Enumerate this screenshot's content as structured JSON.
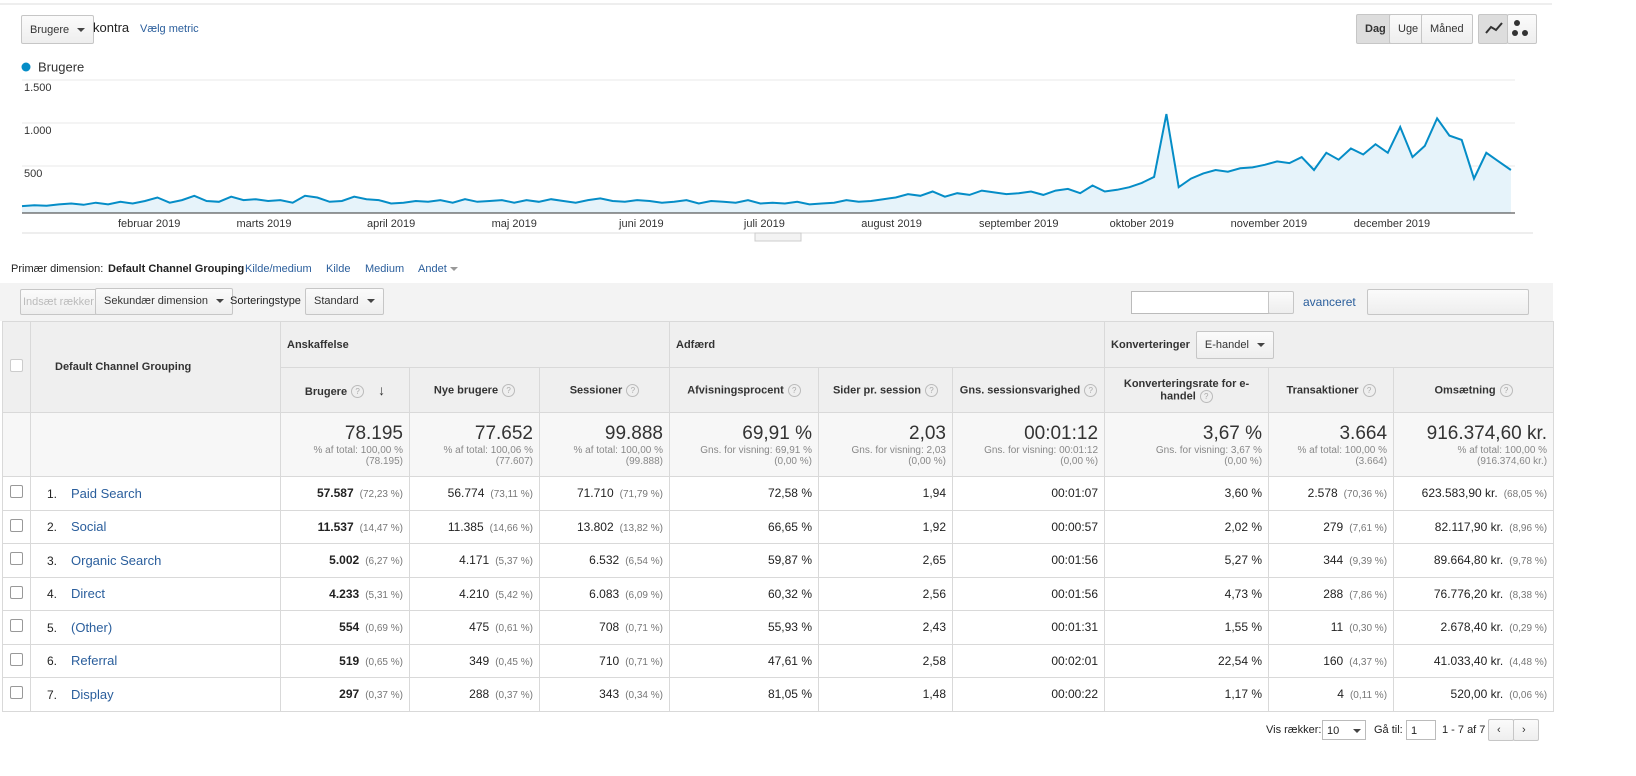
{
  "toolbar": {
    "metric": "Brugere",
    "versus": "kontra",
    "choose_metric": "Vælg metric",
    "periods": [
      "Dag",
      "Uge",
      "Måned"
    ]
  },
  "chart_data": {
    "type": "line",
    "x": [
      0,
      3,
      6,
      9,
      12,
      15,
      18,
      21,
      24,
      27,
      30,
      33,
      36,
      39,
      42,
      45,
      48,
      51,
      54,
      57,
      60,
      63,
      66,
      69,
      72,
      75,
      78,
      81,
      84,
      87,
      90,
      93,
      96,
      99,
      102,
      105,
      108,
      111,
      114,
      117,
      120,
      123,
      126,
      129,
      132,
      135,
      138,
      141,
      144,
      147,
      150,
      153,
      156,
      159,
      162,
      165,
      168,
      171,
      174,
      177,
      180,
      183,
      186,
      189,
      192,
      195,
      198,
      201,
      204,
      207,
      210,
      213,
      216,
      219,
      222,
      225,
      228,
      231,
      234,
      237,
      240,
      243,
      246,
      249,
      252,
      255,
      258,
      261,
      264,
      267,
      270,
      273,
      276,
      279,
      282,
      285,
      288,
      291,
      294,
      297,
      300,
      303,
      306,
      309,
      312,
      315,
      318,
      321,
      324,
      327,
      330,
      333,
      336,
      339,
      342,
      345,
      348,
      351,
      354,
      357,
      360,
      363
    ],
    "series": [
      {
        "name": "Brugere",
        "color": "#058dc7",
        "values": [
          80,
          90,
          85,
          100,
          110,
          95,
          120,
          100,
          130,
          110,
          140,
          180,
          120,
          150,
          200,
          140,
          130,
          190,
          150,
          160,
          140,
          150,
          120,
          200,
          180,
          130,
          140,
          190,
          160,
          150,
          110,
          120,
          140,
          130,
          150,
          120,
          160,
          130,
          140,
          150,
          120,
          150,
          130,
          160,
          140,
          120,
          150,
          170,
          140,
          130,
          150,
          140,
          120,
          130,
          150,
          110,
          140,
          130,
          120,
          150,
          110,
          120,
          110,
          130,
          100,
          110,
          120,
          150,
          130,
          140,
          160,
          180,
          220,
          200,
          250,
          190,
          230,
          210,
          260,
          240,
          220,
          230,
          250,
          210,
          260,
          280,
          230,
          320,
          250,
          270,
          300,
          350,
          420,
          1150,
          300,
          400,
          460,
          500,
          480,
          520,
          530,
          560,
          600,
          580,
          650,
          500,
          700,
          620,
          750,
          680,
          800,
          700,
          1000,
          650,
          780,
          1100,
          900,
          850,
          400,
          700,
          600,
          500
        ]
      }
    ],
    "xlim": [
      0,
      364
    ],
    "xticks": [
      {
        "value": 31,
        "label": "februar 2019"
      },
      {
        "value": 59,
        "label": "marts 2019"
      },
      {
        "value": 90,
        "label": "april 2019"
      },
      {
        "value": 120,
        "label": "maj 2019"
      },
      {
        "value": 151,
        "label": "juni 2019"
      },
      {
        "value": 181,
        "label": "juli 2019"
      },
      {
        "value": 212,
        "label": "august 2019"
      },
      {
        "value": 243,
        "label": "september 2019"
      },
      {
        "value": 273,
        "label": "oktober 2019"
      },
      {
        "value": 304,
        "label": "november 2019"
      },
      {
        "value": 334,
        "label": "december 2019"
      }
    ],
    "ylim": [
      0,
      1500
    ],
    "yticks": [
      500,
      {
        "value": 1000,
        "label": "1.000"
      },
      {
        "value": 1500,
        "label": "1.500"
      }
    ],
    "grid": true
  },
  "dimension_bar": {
    "label": "Primær dimension:",
    "options": [
      "Default Channel Grouping",
      "Kilde/medium",
      "Kilde",
      "Medium",
      "Andet"
    ]
  },
  "table_controls": {
    "insert_rows": "Indsæt rækker",
    "secondary": "Sekundær dimension",
    "sort_label": "Sorteringstype",
    "sort_value": "Standard",
    "advanced": "avanceret"
  },
  "table": {
    "dimension": "Default Channel Grouping",
    "groups": [
      "Anskaffelse",
      "Adfærd",
      "Konverteringer"
    ],
    "conversion_select": "E-handel",
    "columns": [
      "Brugere",
      "Nye brugere",
      "Sessioner",
      "Afvisningsprocent",
      "Sider pr. session",
      "Gns. sessionsvarighed",
      "Konverteringsrate for e-handel",
      "Transaktioner",
      "Omsætning"
    ],
    "totals": [
      {
        "value": "78.195",
        "lines": [
          "% af total: 100,00 %",
          "(78.195)"
        ]
      },
      {
        "value": "77.652",
        "lines": [
          "% af total: 100,06 %",
          "(77.607)"
        ]
      },
      {
        "value": "99.888",
        "lines": [
          "% af total: 100,00 %",
          "(99.888)"
        ]
      },
      {
        "value": "69,91 %",
        "lines": [
          "Gns. for visning: 69,91 %",
          "(0,00 %)"
        ]
      },
      {
        "value": "2,03",
        "lines": [
          "Gns. for visning: 2,03",
          "(0,00 %)"
        ]
      },
      {
        "value": "00:01:12",
        "lines": [
          "Gns. for visning: 00:01:12",
          "(0,00 %)"
        ]
      },
      {
        "value": "3,67 %",
        "lines": [
          "Gns. for visning: 3,67 %",
          "(0,00 %)"
        ]
      },
      {
        "value": "3.664",
        "lines": [
          "% af total: 100,00 %",
          "(3.664)"
        ]
      },
      {
        "value": "916.374,60 kr.",
        "lines": [
          "% af total: 100,00 %",
          "(916.374,60 kr.)"
        ]
      }
    ],
    "rows": [
      {
        "index": "1.",
        "name": "Paid Search",
        "cells": [
          [
            "57.587",
            "(72,23 %)"
          ],
          [
            "56.774",
            "(73,11 %)"
          ],
          [
            "71.710",
            "(71,79 %)"
          ],
          [
            "72,58 %"
          ],
          [
            "1,94"
          ],
          [
            "00:01:07"
          ],
          [
            "3,60 %"
          ],
          [
            "2.578",
            "(70,36 %)"
          ],
          [
            "623.583,90 kr.",
            "(68,05 %)"
          ]
        ]
      },
      {
        "index": "2.",
        "name": "Social",
        "cells": [
          [
            "11.537",
            "(14,47 %)"
          ],
          [
            "11.385",
            "(14,66 %)"
          ],
          [
            "13.802",
            "(13,82 %)"
          ],
          [
            "66,65 %"
          ],
          [
            "1,92"
          ],
          [
            "00:00:57"
          ],
          [
            "2,02 %"
          ],
          [
            "279",
            "(7,61 %)"
          ],
          [
            "82.117,90 kr.",
            "(8,96 %)"
          ]
        ]
      },
      {
        "index": "3.",
        "name": "Organic Search",
        "cells": [
          [
            "5.002",
            "(6,27 %)"
          ],
          [
            "4.171",
            "(5,37 %)"
          ],
          [
            "6.532",
            "(6,54 %)"
          ],
          [
            "59,87 %"
          ],
          [
            "2,65"
          ],
          [
            "00:01:56"
          ],
          [
            "5,27 %"
          ],
          [
            "344",
            "(9,39 %)"
          ],
          [
            "89.664,80 kr.",
            "(9,78 %)"
          ]
        ]
      },
      {
        "index": "4.",
        "name": "Direct",
        "cells": [
          [
            "4.233",
            "(5,31 %)"
          ],
          [
            "4.210",
            "(5,42 %)"
          ],
          [
            "6.083",
            "(6,09 %)"
          ],
          [
            "60,32 %"
          ],
          [
            "2,56"
          ],
          [
            "00:01:56"
          ],
          [
            "4,73 %"
          ],
          [
            "288",
            "(7,86 %)"
          ],
          [
            "76.776,20 kr.",
            "(8,38 %)"
          ]
        ]
      },
      {
        "index": "5.",
        "name": "(Other)",
        "cells": [
          [
            "554",
            "(0,69 %)"
          ],
          [
            "475",
            "(0,61 %)"
          ],
          [
            "708",
            "(0,71 %)"
          ],
          [
            "55,93 %"
          ],
          [
            "2,43"
          ],
          [
            "00:01:31"
          ],
          [
            "1,55 %"
          ],
          [
            "11",
            "(0,30 %)"
          ],
          [
            "2.678,40 kr.",
            "(0,29 %)"
          ]
        ]
      },
      {
        "index": "6.",
        "name": "Referral",
        "cells": [
          [
            "519",
            "(0,65 %)"
          ],
          [
            "349",
            "(0,45 %)"
          ],
          [
            "710",
            "(0,71 %)"
          ],
          [
            "47,61 %"
          ],
          [
            "2,58"
          ],
          [
            "00:02:01"
          ],
          [
            "22,54 %"
          ],
          [
            "160",
            "(4,37 %)"
          ],
          [
            "41.033,40 kr.",
            "(4,48 %)"
          ]
        ]
      },
      {
        "index": "7.",
        "name": "Display",
        "cells": [
          [
            "297",
            "(0,37 %)"
          ],
          [
            "288",
            "(0,37 %)"
          ],
          [
            "343",
            "(0,34 %)"
          ],
          [
            "81,05 %"
          ],
          [
            "1,48"
          ],
          [
            "00:00:22"
          ],
          [
            "1,17 %"
          ],
          [
            "4",
            "(0,11 %)"
          ],
          [
            "520,00 kr.",
            "(0,06 %)"
          ]
        ]
      }
    ]
  },
  "pagination": {
    "rows_label": "Vis rækker:",
    "rows_value": "10",
    "goto_label": "Gå til:",
    "goto_value": "1",
    "range": "1 - 7 af 7"
  }
}
